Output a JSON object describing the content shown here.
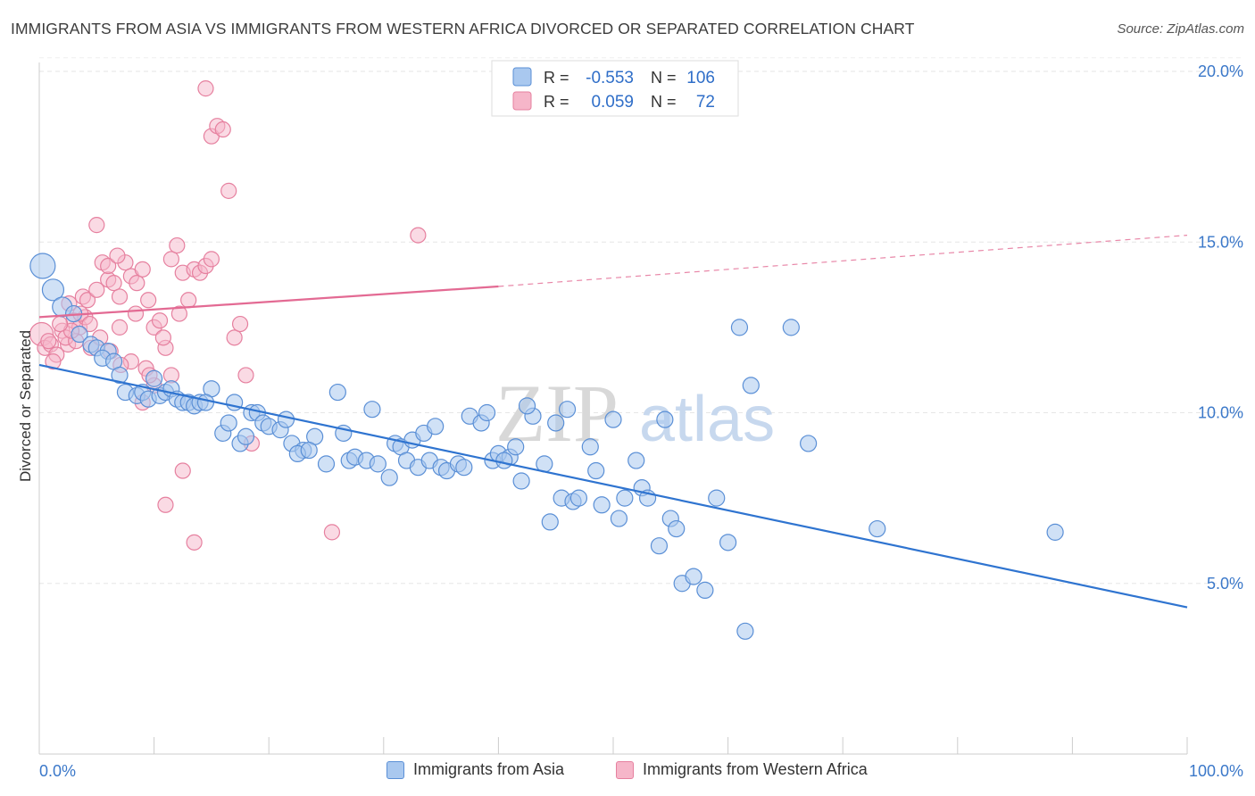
{
  "title": "IMMIGRANTS FROM ASIA VS IMMIGRANTS FROM WESTERN AFRICA DIVORCED OR SEPARATED CORRELATION CHART",
  "source": "Source: ZipAtlas.com",
  "watermark": {
    "zip": "ZIP",
    "atlas": "atlas"
  },
  "colors": {
    "asia_fill": "#a9c8ef",
    "asia_stroke": "#5a8fd6",
    "asia_line": "#2f74d0",
    "africa_fill": "#f6b6c9",
    "africa_stroke": "#e6809f",
    "africa_line": "#e36a93",
    "grid": "#e6e6e6",
    "tick_label": "#3b78c9"
  },
  "legend_box": {
    "rows": [
      {
        "r_label": "R =",
        "r_value": "-0.553",
        "n_label": "N =",
        "n_value": "106"
      },
      {
        "r_label": "R =",
        "r_value": "0.059",
        "n_label": "N =",
        "n_value": "72"
      }
    ]
  },
  "chart_data": {
    "type": "scatter",
    "title": "IMMIGRANTS FROM ASIA VS IMMIGRANTS FROM WESTERN AFRICA DIVORCED OR SEPARATED CORRELATION CHART",
    "xlabel": "",
    "ylabel": "Divorced or Separated",
    "xlim": [
      0,
      100
    ],
    "ylim": [
      0,
      21
    ],
    "x_tick_labels": [
      "0.0%",
      "100.0%"
    ],
    "y_ticks": [
      5,
      10,
      15,
      20
    ],
    "y_tick_labels": [
      "5.0%",
      "10.0%",
      "15.0%",
      "20.0%"
    ],
    "grid": true,
    "legend_placement": "bottom",
    "series": [
      {
        "name": "Immigrants from Asia",
        "R": -0.553,
        "N": 106,
        "trend": {
          "x": [
            0,
            100
          ],
          "y": [
            11.4,
            4.3
          ],
          "dashed_from_x": null
        },
        "points": [
          [
            0.3,
            14.3
          ],
          [
            1.2,
            13.6
          ],
          [
            2.0,
            13.1
          ],
          [
            3.0,
            12.9
          ],
          [
            3.5,
            12.3
          ],
          [
            4.5,
            12.0
          ],
          [
            5.0,
            11.9
          ],
          [
            6.0,
            11.8
          ],
          [
            5.5,
            11.6
          ],
          [
            6.5,
            11.5
          ],
          [
            7.0,
            11.1
          ],
          [
            7.5,
            10.6
          ],
          [
            8.5,
            10.5
          ],
          [
            9.0,
            10.6
          ],
          [
            9.5,
            10.4
          ],
          [
            10.0,
            11.0
          ],
          [
            10.5,
            10.5
          ],
          [
            11.0,
            10.6
          ],
          [
            11.5,
            10.7
          ],
          [
            12.0,
            10.4
          ],
          [
            12.5,
            10.3
          ],
          [
            13.0,
            10.3
          ],
          [
            13.5,
            10.2
          ],
          [
            14.0,
            10.3
          ],
          [
            15.0,
            10.7
          ],
          [
            14.5,
            10.3
          ],
          [
            16.0,
            9.4
          ],
          [
            16.5,
            9.7
          ],
          [
            17.0,
            10.3
          ],
          [
            17.5,
            9.1
          ],
          [
            18.0,
            9.3
          ],
          [
            18.5,
            10.0
          ],
          [
            19.0,
            10.0
          ],
          [
            19.5,
            9.7
          ],
          [
            20.0,
            9.6
          ],
          [
            21.0,
            9.5
          ],
          [
            21.5,
            9.8
          ],
          [
            22.0,
            9.1
          ],
          [
            23.0,
            8.9
          ],
          [
            24.0,
            9.3
          ],
          [
            22.5,
            8.8
          ],
          [
            25.0,
            8.5
          ],
          [
            23.5,
            8.9
          ],
          [
            26.0,
            10.6
          ],
          [
            26.5,
            9.4
          ],
          [
            27.0,
            8.6
          ],
          [
            27.5,
            8.7
          ],
          [
            28.5,
            8.6
          ],
          [
            29.0,
            10.1
          ],
          [
            29.5,
            8.5
          ],
          [
            30.5,
            8.1
          ],
          [
            31.0,
            9.1
          ],
          [
            31.5,
            9.0
          ],
          [
            32.0,
            8.6
          ],
          [
            32.5,
            9.2
          ],
          [
            33.0,
            8.4
          ],
          [
            33.5,
            9.4
          ],
          [
            34.0,
            8.6
          ],
          [
            34.5,
            9.6
          ],
          [
            35.0,
            8.4
          ],
          [
            35.5,
            8.3
          ],
          [
            36.5,
            8.5
          ],
          [
            37.0,
            8.4
          ],
          [
            37.5,
            9.9
          ],
          [
            38.5,
            9.7
          ],
          [
            39.5,
            8.6
          ],
          [
            40.0,
            8.8
          ],
          [
            41.0,
            8.7
          ],
          [
            40.5,
            8.6
          ],
          [
            41.5,
            9.0
          ],
          [
            42.0,
            8.0
          ],
          [
            43.0,
            9.9
          ],
          [
            44.0,
            8.5
          ],
          [
            44.5,
            6.8
          ],
          [
            45.0,
            9.7
          ],
          [
            45.5,
            7.5
          ],
          [
            46.5,
            7.4
          ],
          [
            47.0,
            7.5
          ],
          [
            48.0,
            9.0
          ],
          [
            48.5,
            8.3
          ],
          [
            49.0,
            7.3
          ],
          [
            51.0,
            7.5
          ],
          [
            50.5,
            6.9
          ],
          [
            52.0,
            8.6
          ],
          [
            52.5,
            7.8
          ],
          [
            53.0,
            7.5
          ],
          [
            54.0,
            6.1
          ],
          [
            55.0,
            6.9
          ],
          [
            55.5,
            6.6
          ],
          [
            56.0,
            5.0
          ],
          [
            57.0,
            5.2
          ],
          [
            58.0,
            4.8
          ],
          [
            59.0,
            7.5
          ],
          [
            60.0,
            6.2
          ],
          [
            61.0,
            12.5
          ],
          [
            61.5,
            3.6
          ],
          [
            62.0,
            10.8
          ],
          [
            65.5,
            12.5
          ],
          [
            67.0,
            9.1
          ],
          [
            73.0,
            6.6
          ],
          [
            88.5,
            6.5
          ],
          [
            39.0,
            10.0
          ],
          [
            42.5,
            10.2
          ],
          [
            46.0,
            10.1
          ],
          [
            50.0,
            9.8
          ],
          [
            54.5,
            9.8
          ]
        ]
      },
      {
        "name": "Immigrants from Western Africa",
        "R": 0.059,
        "N": 72,
        "trend": {
          "x": [
            0,
            40,
            100
          ],
          "y": [
            12.8,
            13.7,
            15.2
          ],
          "dashed_from_x": 40
        },
        "points": [
          [
            0.2,
            12.3
          ],
          [
            0.5,
            11.9
          ],
          [
            1.0,
            12.0
          ],
          [
            1.5,
            11.7
          ],
          [
            2.0,
            12.4
          ],
          [
            2.5,
            12.0
          ],
          [
            3.0,
            12.7
          ],
          [
            3.5,
            12.5
          ],
          [
            4.0,
            12.8
          ],
          [
            4.5,
            11.9
          ],
          [
            0.8,
            12.1
          ],
          [
            1.2,
            11.5
          ],
          [
            2.3,
            12.2
          ],
          [
            3.2,
            12.1
          ],
          [
            3.8,
            13.4
          ],
          [
            4.2,
            13.3
          ],
          [
            5.0,
            13.6
          ],
          [
            5.5,
            14.4
          ],
          [
            6.0,
            13.9
          ],
          [
            6.5,
            13.8
          ],
          [
            7.0,
            13.4
          ],
          [
            7.5,
            14.4
          ],
          [
            8.0,
            14.0
          ],
          [
            8.5,
            13.8
          ],
          [
            9.0,
            14.2
          ],
          [
            9.5,
            13.3
          ],
          [
            10.0,
            12.5
          ],
          [
            10.5,
            12.7
          ],
          [
            11.0,
            11.9
          ],
          [
            11.5,
            14.5
          ],
          [
            12.0,
            14.9
          ],
          [
            12.5,
            14.1
          ],
          [
            13.0,
            13.3
          ],
          [
            13.5,
            14.2
          ],
          [
            14.0,
            14.1
          ],
          [
            14.5,
            14.3
          ],
          [
            15.0,
            18.1
          ],
          [
            15.5,
            18.4
          ],
          [
            16.0,
            18.3
          ],
          [
            16.5,
            16.5
          ],
          [
            17.0,
            12.2
          ],
          [
            17.5,
            12.6
          ],
          [
            18.0,
            11.1
          ],
          [
            18.5,
            9.1
          ],
          [
            5.0,
            15.5
          ],
          [
            6.0,
            14.3
          ],
          [
            7.0,
            12.5
          ],
          [
            8.0,
            11.5
          ],
          [
            9.0,
            10.3
          ],
          [
            10.0,
            10.8
          ],
          [
            11.0,
            7.3
          ],
          [
            11.5,
            11.1
          ],
          [
            12.5,
            8.3
          ],
          [
            13.5,
            6.2
          ],
          [
            14.5,
            19.5
          ],
          [
            15.0,
            14.5
          ],
          [
            2.8,
            12.4
          ],
          [
            3.6,
            12.9
          ],
          [
            4.4,
            12.6
          ],
          [
            5.3,
            12.2
          ],
          [
            6.2,
            11.8
          ],
          [
            7.1,
            11.4
          ],
          [
            8.4,
            12.9
          ],
          [
            9.3,
            11.3
          ],
          [
            25.5,
            6.5
          ],
          [
            33.0,
            15.2
          ],
          [
            1.8,
            12.6
          ],
          [
            2.6,
            13.2
          ],
          [
            6.8,
            14.6
          ],
          [
            9.6,
            11.1
          ],
          [
            10.8,
            12.2
          ],
          [
            12.2,
            12.9
          ]
        ]
      }
    ]
  },
  "bottom_legend": [
    {
      "label": "Immigrants from Asia"
    },
    {
      "label": "Immigrants from Western Africa"
    }
  ]
}
